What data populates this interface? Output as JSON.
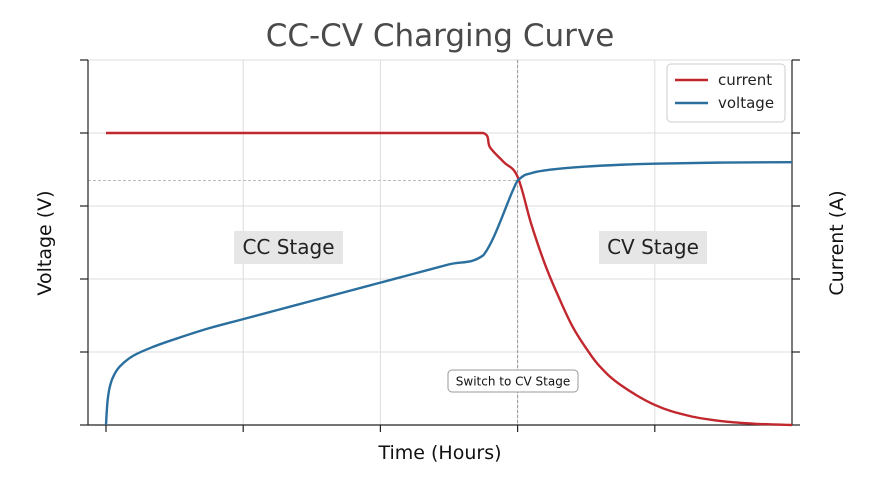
{
  "chart_data": {
    "type": "line",
    "title": "CC-CV Charging Curve",
    "xlabel": "Time (Hours)",
    "ylabel_left": "Voltage (V)",
    "ylabel_right": "Current (A)",
    "xlim": [
      0,
      1.0
    ],
    "ylim": [
      0,
      1.0
    ],
    "tick_labels_shown": false,
    "grid": true,
    "legend": {
      "position": "top-right",
      "entries": [
        "current",
        "voltage"
      ]
    },
    "colors": {
      "current": "#c1272d",
      "voltage": "#2a6f9e",
      "grid": "#dddddd",
      "reference": "#999999"
    },
    "series": [
      {
        "name": "current",
        "x": [
          0.0,
          0.1,
          0.2,
          0.3,
          0.4,
          0.5,
          0.55,
          0.56,
          0.58,
          0.6,
          0.62,
          0.64,
          0.66,
          0.68,
          0.7,
          0.72,
          0.75,
          0.8,
          0.85,
          0.9,
          0.95,
          1.0
        ],
        "y": [
          0.8,
          0.8,
          0.8,
          0.8,
          0.8,
          0.8,
          0.8,
          0.76,
          0.72,
          0.68,
          0.55,
          0.44,
          0.35,
          0.27,
          0.21,
          0.16,
          0.11,
          0.055,
          0.025,
          0.01,
          0.003,
          0.0
        ]
      },
      {
        "name": "voltage",
        "x": [
          0.0,
          0.002,
          0.005,
          0.01,
          0.02,
          0.04,
          0.07,
          0.1,
          0.15,
          0.2,
          0.25,
          0.3,
          0.35,
          0.4,
          0.45,
          0.5,
          0.55,
          0.6,
          0.62,
          0.65,
          0.7,
          0.75,
          0.8,
          0.9,
          1.0
        ],
        "y": [
          0.0,
          0.06,
          0.1,
          0.13,
          0.16,
          0.19,
          0.215,
          0.235,
          0.265,
          0.29,
          0.315,
          0.34,
          0.365,
          0.39,
          0.415,
          0.44,
          0.465,
          0.67,
          0.69,
          0.7,
          0.708,
          0.713,
          0.716,
          0.719,
          0.72
        ]
      }
    ],
    "annotations": {
      "switch_x": 0.6,
      "switch_y": 0.67,
      "switch_label": "Switch to CV Stage",
      "cc_stage": "CC Stage",
      "cv_stage": "CV Stage"
    }
  }
}
